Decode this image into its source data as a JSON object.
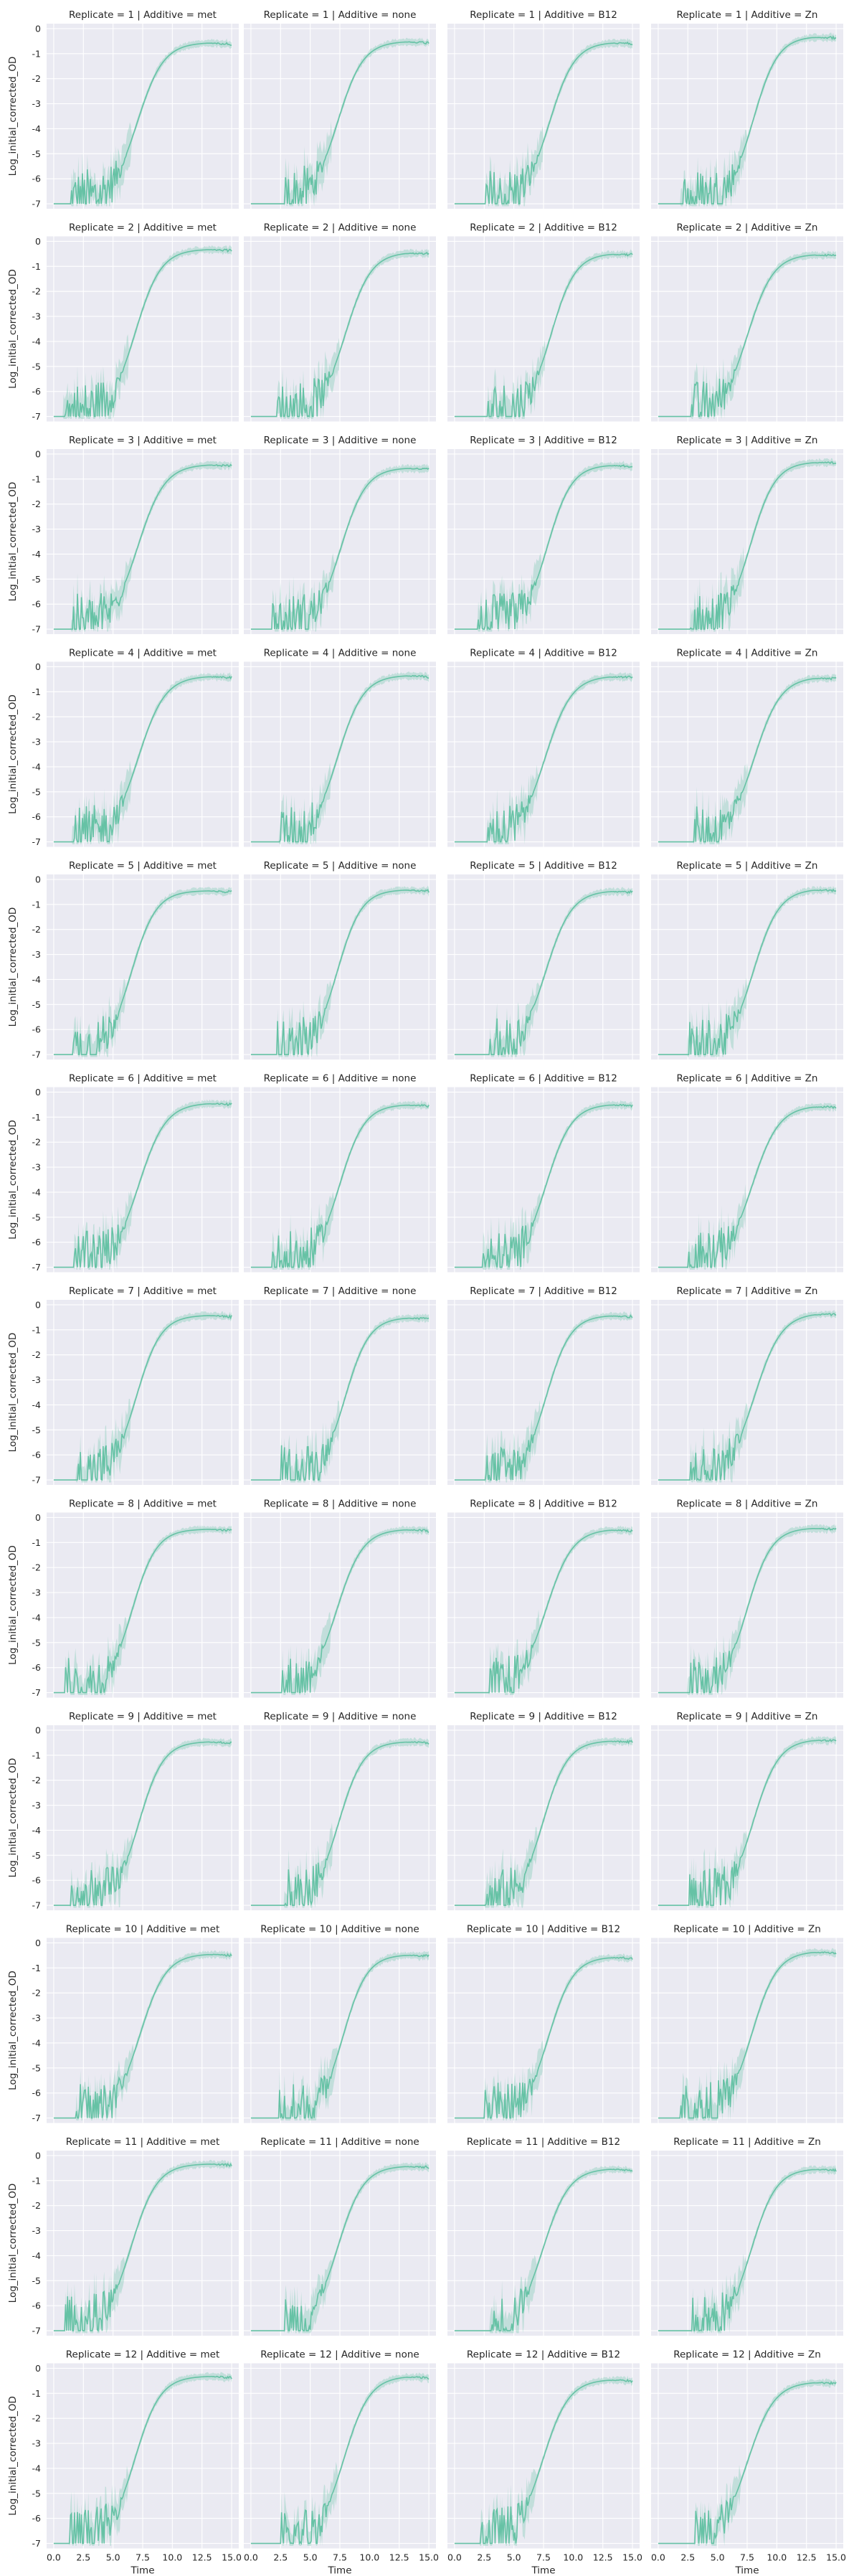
{
  "chart_data": {
    "type": "line",
    "layout": "facet-grid",
    "row_variable": "Replicate",
    "col_variable": "Additive",
    "rows": [
      "1",
      "2",
      "3",
      "4",
      "5",
      "6",
      "7",
      "8",
      "9",
      "10",
      "11",
      "12"
    ],
    "columns": [
      "met",
      "none",
      "B12",
      "Zn"
    ],
    "panel_title_sep": " | ",
    "panel_title_eq": " = ",
    "xlabel": "Time",
    "ylabel": "Log_initial_corrected_OD",
    "xlim": [
      -0.6,
      15.6
    ],
    "ylim": [
      -7.2,
      0.2
    ],
    "xticks": [
      "0.0",
      "2.5",
      "5.0",
      "7.5",
      "10.0",
      "12.5",
      "15.0"
    ],
    "xtick_values": [
      0,
      2.5,
      5,
      7.5,
      10,
      12.5,
      15
    ],
    "yticks": [
      "0",
      "-1",
      "-2",
      "-3",
      "-4",
      "-5",
      "-6",
      "-7"
    ],
    "ytick_values": [
      0,
      -1,
      -2,
      -3,
      -4,
      -5,
      -6,
      -7
    ],
    "grid": true,
    "line_color": "#66c2a5",
    "band_color": "#66c2a5",
    "background_color": "#eaeaf2",
    "series_shape": "logistic growth rising from about -7 at Time 0 to about -0.3 by Time 13-14.5, noisy below -5",
    "curve_params": {
      "met": {
        "mid": 6.9,
        "slope": 0.92,
        "start": 0.7
      },
      "none": {
        "mid": 7.6,
        "slope": 0.95,
        "start": 1.7
      },
      "B12": {
        "mid": 7.8,
        "slope": 0.92,
        "start": 1.8
      },
      "Zn": {
        "mid": 7.8,
        "slope": 0.92,
        "start": 1.9
      }
    }
  }
}
